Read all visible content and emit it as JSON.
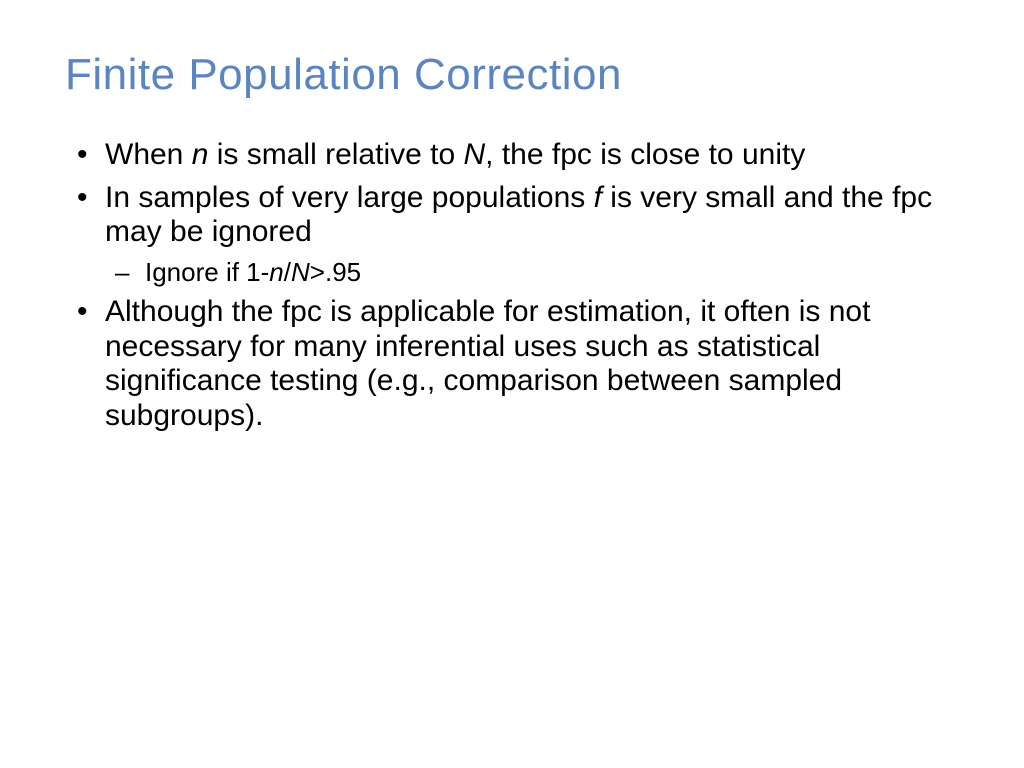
{
  "slide": {
    "title": "Finite Population Correction",
    "title_color": "#5b85c0",
    "body_color": "#000000",
    "background_color": "#ffffff",
    "title_fontsize": 44,
    "body_fontsize": 30,
    "sub_fontsize": 26,
    "bullets": [
      {
        "segments": [
          {
            "text": "When ",
            "italic": false
          },
          {
            "text": "n",
            "italic": true
          },
          {
            "text": " is small relative to ",
            "italic": false
          },
          {
            "text": "N",
            "italic": true
          },
          {
            "text": ", the fpc is close to unity",
            "italic": false
          }
        ]
      },
      {
        "segments": [
          {
            "text": "In samples of very large populations ",
            "italic": false
          },
          {
            "text": "f",
            "italic": true
          },
          {
            "text": " is very small and the fpc may be ignored",
            "italic": false
          }
        ],
        "sub": [
          {
            "segments": [
              {
                "text": "Ignore if 1-",
                "italic": false
              },
              {
                "text": "n",
                "italic": true
              },
              {
                "text": "/",
                "italic": false
              },
              {
                "text": "N",
                "italic": true
              },
              {
                "text": ">.95",
                "italic": false
              }
            ]
          }
        ]
      },
      {
        "segments": [
          {
            "text": "Although the fpc is applicable for estimation, it often is not necessary for many inferential uses such as statistical significance testing (e.g., comparison between sampled subgroups).",
            "italic": false
          }
        ]
      }
    ]
  }
}
